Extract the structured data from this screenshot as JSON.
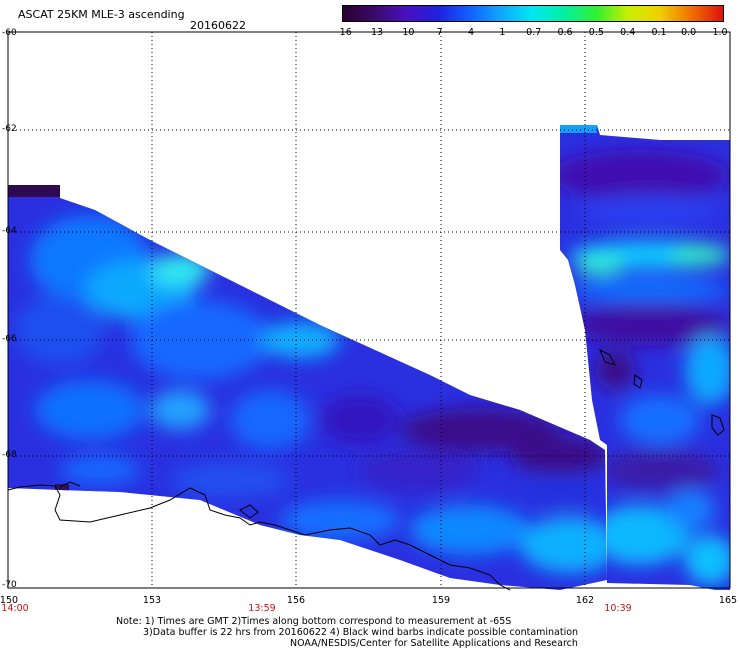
{
  "header": {
    "title": "ASCAT 25KM MLE-3 ascending",
    "date": "20160622"
  },
  "colorbar": {
    "labels": [
      "-16",
      "-13",
      "-10",
      "-7",
      "-4",
      "-1",
      "-0.7",
      "-0.6",
      "-0.5",
      "-0.4",
      "-0.1",
      "0.0",
      "1.0"
    ],
    "colors": [
      "#2a0030",
      "#3a0a6a",
      "#4a10c0",
      "#2020e0",
      "#1060ff",
      "#10a8ff",
      "#00e8f0",
      "#00f0a0",
      "#30f030",
      "#c8f000",
      "#f0d000",
      "#f07000",
      "#e01010"
    ]
  },
  "map": {
    "lat_labels": [
      "-60",
      "-62",
      "-64",
      "-66",
      "-68",
      "-70"
    ],
    "lon_labels": [
      "150",
      "153",
      "156",
      "159",
      "162",
      "165"
    ],
    "lat_range": [
      -70,
      -60
    ],
    "lon_range": [
      150,
      165
    ]
  },
  "times": [
    "14:00",
    "13:59",
    "10:39"
  ],
  "notes": {
    "line1": "Note: 1) Times are GMT 2)Times along bottom correspond to measurement at -65S",
    "line2": "3)Data buffer is 22 hrs from 20160622 4) Black wind barbs indicate possible contamination",
    "line3": "NOAA/NESDIS/Center for Satellite Applications and Research"
  }
}
